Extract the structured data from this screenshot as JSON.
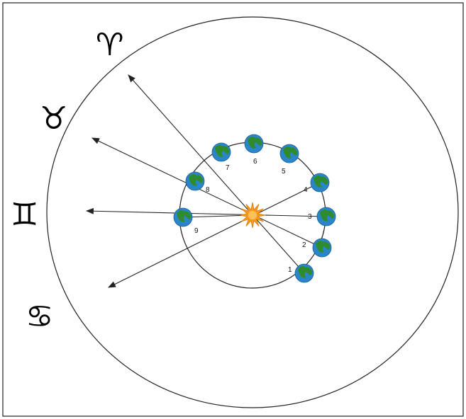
{
  "diagram": {
    "zodiac_signs": [
      {
        "symbol": "♈",
        "name": "aries"
      },
      {
        "symbol": "♉",
        "name": "taurus"
      },
      {
        "symbol": "♊",
        "name": "gemini"
      },
      {
        "symbol": "♋",
        "name": "cancer"
      }
    ],
    "earth_positions": [
      {
        "label": "1"
      },
      {
        "label": "2"
      },
      {
        "label": "3"
      },
      {
        "label": "4"
      },
      {
        "label": "5"
      },
      {
        "label": "6"
      },
      {
        "label": "7"
      },
      {
        "label": "8"
      },
      {
        "label": "9"
      }
    ],
    "colors": {
      "earth_ocean": "#2a86c8",
      "earth_land": "#2e8b2e",
      "sun": "#f59a23",
      "line": "#222222",
      "frame": "#222222"
    }
  }
}
